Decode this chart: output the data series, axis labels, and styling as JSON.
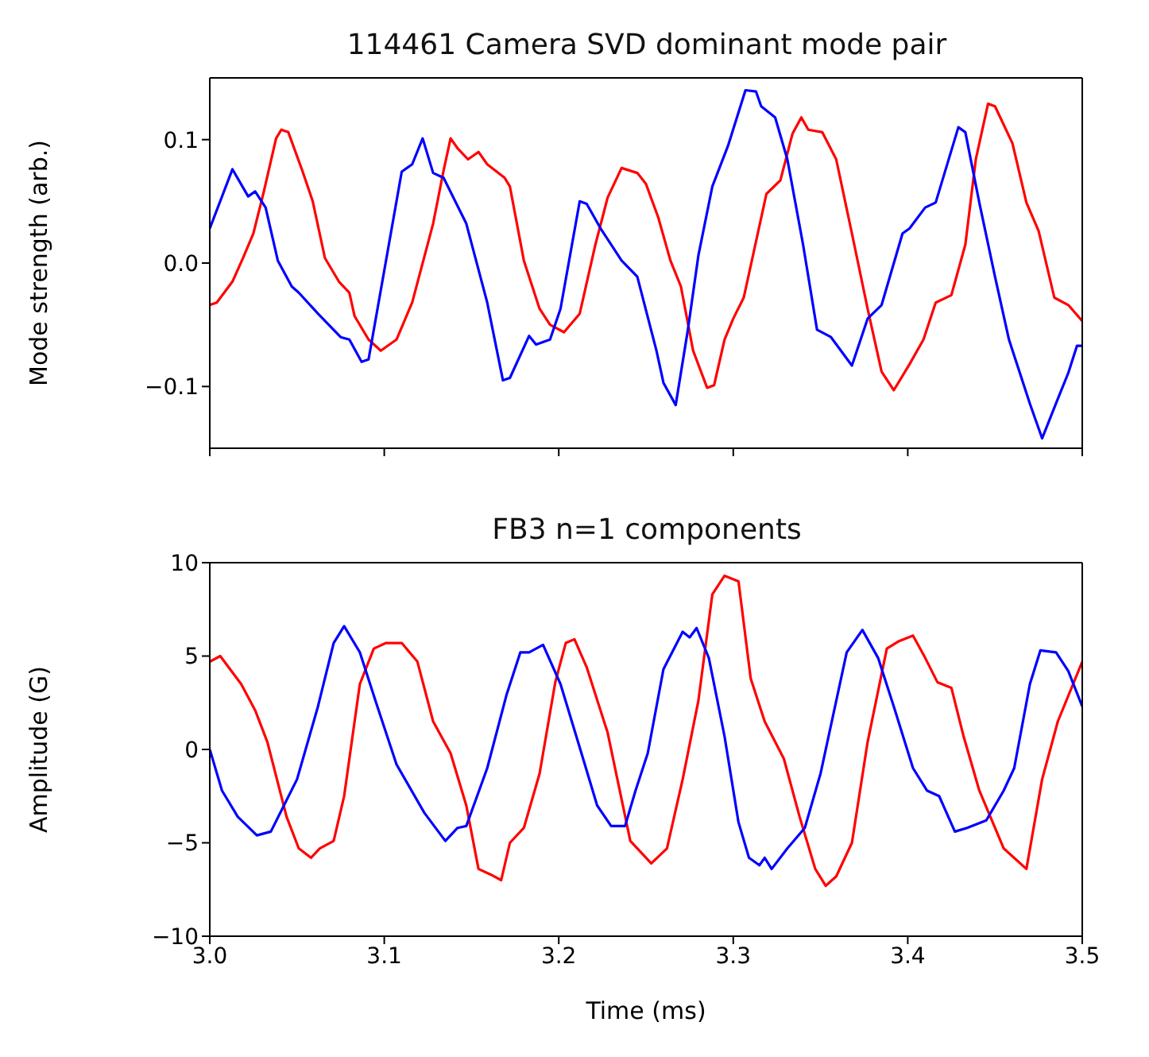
{
  "chart_data": [
    {
      "type": "line",
      "title": "114461 Camera SVD dominant mode pair",
      "ylabel": "Mode strength (arb.)",
      "xlim": [
        3.0,
        3.5
      ],
      "xticks": [
        {
          "value": 3.0,
          "label": null
        },
        {
          "value": 3.1,
          "label": null
        },
        {
          "value": 3.2,
          "label": null
        },
        {
          "value": 3.3,
          "label": null
        },
        {
          "value": 3.4,
          "label": null
        },
        {
          "value": 3.5,
          "label": null
        }
      ],
      "ylim": [
        -0.15,
        0.15
      ],
      "yticks": [
        {
          "value": -0.1,
          "label": "−0.1"
        },
        {
          "value": 0,
          "label": "0.0"
        },
        0.1
      ],
      "tick_labels": "y",
      "series": [
        {
          "color": "#ff0000",
          "x": [
            3.0,
            3.004,
            3.013,
            3.019,
            3.025,
            3.031,
            3.038,
            3.041,
            3.045,
            3.053,
            3.059,
            3.066,
            3.074,
            3.08,
            3.083,
            3.091,
            3.098,
            3.107,
            3.116,
            3.128,
            3.134,
            3.138,
            3.142,
            3.148,
            3.154,
            3.159,
            3.169,
            3.172,
            3.18,
            3.189,
            3.195,
            3.203,
            3.212,
            3.221,
            3.228,
            3.236,
            3.245,
            3.25,
            3.257,
            3.264,
            3.27,
            3.277,
            3.285,
            3.289,
            3.295,
            3.3,
            3.306,
            3.319,
            3.327,
            3.334,
            3.339,
            3.343,
            3.351,
            3.359,
            3.368,
            3.377,
            3.385,
            3.392,
            3.401,
            3.409,
            3.416,
            3.425,
            3.433,
            3.439,
            3.446,
            3.45,
            3.46,
            3.468,
            3.475,
            3.484,
            3.492,
            3.5
          ],
          "values": [
            -0.034,
            -0.032,
            -0.015,
            0.004,
            0.024,
            0.058,
            0.101,
            0.108,
            0.106,
            0.075,
            0.05,
            0.004,
            -0.015,
            -0.024,
            -0.043,
            -0.062,
            -0.071,
            -0.062,
            -0.032,
            0.032,
            0.075,
            0.101,
            0.093,
            0.084,
            0.09,
            0.08,
            0.069,
            0.062,
            0.002,
            -0.037,
            -0.05,
            -0.056,
            -0.041,
            0.015,
            0.053,
            0.077,
            0.073,
            0.064,
            0.037,
            0.002,
            -0.019,
            -0.071,
            -0.101,
            -0.099,
            -0.062,
            -0.045,
            -0.028,
            0.056,
            0.067,
            0.105,
            0.118,
            0.108,
            0.106,
            0.084,
            0.024,
            -0.037,
            -0.088,
            -0.103,
            -0.082,
            -0.062,
            -0.032,
            -0.026,
            0.015,
            0.084,
            0.129,
            0.127,
            0.097,
            0.049,
            0.026,
            -0.028,
            -0.034,
            -0.047
          ]
        },
        {
          "color": "#0000ff",
          "x": [
            3.0,
            3.013,
            3.022,
            3.026,
            3.032,
            3.039,
            3.047,
            3.051,
            3.062,
            3.075,
            3.08,
            3.087,
            3.091,
            3.11,
            3.116,
            3.122,
            3.128,
            3.134,
            3.147,
            3.159,
            3.168,
            3.172,
            3.183,
            3.187,
            3.195,
            3.201,
            3.212,
            3.216,
            3.224,
            3.236,
            3.245,
            3.256,
            3.26,
            3.267,
            3.274,
            3.28,
            3.288,
            3.297,
            3.307,
            3.313,
            3.316,
            3.324,
            3.331,
            3.34,
            3.348,
            3.356,
            3.368,
            3.377,
            3.385,
            3.397,
            3.401,
            3.41,
            3.416,
            3.429,
            3.433,
            3.441,
            3.45,
            3.458,
            3.47,
            3.477,
            3.486,
            3.492,
            3.497,
            3.5
          ],
          "values": [
            0.028,
            0.076,
            0.054,
            0.058,
            0.045,
            0.002,
            -0.019,
            -0.024,
            -0.041,
            -0.06,
            -0.062,
            -0.08,
            -0.078,
            0.074,
            0.08,
            0.101,
            0.073,
            0.069,
            0.032,
            -0.032,
            -0.095,
            -0.093,
            -0.059,
            -0.066,
            -0.062,
            -0.037,
            0.05,
            0.048,
            0.028,
            0.002,
            -0.011,
            -0.071,
            -0.097,
            -0.115,
            -0.054,
            0.006,
            0.062,
            0.095,
            0.14,
            0.139,
            0.127,
            0.118,
            0.084,
            0.015,
            -0.054,
            -0.06,
            -0.083,
            -0.045,
            -0.034,
            0.024,
            0.028,
            0.045,
            0.049,
            0.11,
            0.106,
            0.049,
            -0.011,
            -0.062,
            -0.114,
            -0.142,
            -0.11,
            -0.089,
            -0.067,
            -0.067
          ]
        }
      ]
    },
    {
      "type": "line",
      "title": "FB3 n=1 components",
      "xlabel": "Time (ms)",
      "ylabel": "Amplitude (G)",
      "xlim": [
        3.0,
        3.5
      ],
      "xticks": [
        {
          "value": 3.0,
          "label": "3.0"
        },
        3.1,
        3.2,
        3.3,
        3.4,
        {
          "value": 3.5,
          "label": "3.5"
        }
      ],
      "ylim": [
        -10,
        10
      ],
      "yticks": [
        {
          "value": -10,
          "label": "−10"
        },
        {
          "value": -5,
          "label": "−5"
        },
        0,
        5,
        10
      ],
      "series": [
        {
          "color": "#ff0000",
          "x": [
            3.0,
            3.006,
            3.018,
            3.026,
            3.033,
            3.044,
            3.051,
            3.058,
            3.063,
            3.071,
            3.077,
            3.086,
            3.094,
            3.101,
            3.11,
            3.119,
            3.128,
            3.138,
            3.147,
            3.154,
            3.161,
            3.167,
            3.172,
            3.18,
            3.189,
            3.198,
            3.204,
            3.209,
            3.216,
            3.228,
            3.241,
            3.253,
            3.262,
            3.271,
            3.28,
            3.288,
            3.295,
            3.303,
            3.31,
            3.318,
            3.329,
            3.338,
            3.347,
            3.353,
            3.359,
            3.368,
            3.377,
            3.388,
            3.395,
            3.403,
            3.41,
            3.417,
            3.425,
            3.432,
            3.441,
            3.455,
            3.468,
            3.477,
            3.486,
            3.5
          ],
          "values": [
            4.7,
            5,
            3.5,
            2.1,
            0.4,
            -3.6,
            -5.3,
            -5.8,
            -5.3,
            -4.9,
            -2.5,
            3.5,
            5.4,
            5.7,
            5.7,
            4.7,
            1.5,
            -0.2,
            -3,
            -6.4,
            -6.7,
            -7,
            -5,
            -4.2,
            -1.3,
            3.6,
            5.7,
            5.9,
            4.4,
            0.9,
            -4.9,
            -6.1,
            -5.3,
            -1.6,
            2.6,
            8.3,
            9.3,
            9,
            3.8,
            1.5,
            -0.5,
            -3.6,
            -6.4,
            -7.3,
            -6.8,
            -5,
            0.4,
            5.4,
            5.8,
            6.1,
            4.9,
            3.6,
            3.3,
            0.7,
            -2.2,
            -5.3,
            -6.4,
            -1.6,
            1.5,
            4.7
          ]
        },
        {
          "color": "#0000ff",
          "x": [
            3.0,
            3.007,
            3.016,
            3.027,
            3.035,
            3.05,
            3.062,
            3.071,
            3.077,
            3.086,
            3.095,
            3.107,
            3.123,
            3.135,
            3.142,
            3.147,
            3.159,
            3.17,
            3.178,
            3.183,
            3.191,
            3.201,
            3.213,
            3.222,
            3.23,
            3.238,
            3.244,
            3.251,
            3.26,
            3.271,
            3.275,
            3.279,
            3.286,
            3.295,
            3.303,
            3.309,
            3.315,
            3.318,
            3.322,
            3.331,
            3.341,
            3.35,
            3.365,
            3.374,
            3.383,
            3.392,
            3.403,
            3.411,
            3.418,
            3.427,
            3.434,
            3.445,
            3.455,
            3.461,
            3.47,
            3.476,
            3.485,
            3.492,
            3.5
          ],
          "values": [
            0,
            -2.2,
            -3.6,
            -4.6,
            -4.4,
            -1.6,
            2.3,
            5.7,
            6.6,
            5.2,
            2.6,
            -0.8,
            -3.4,
            -4.9,
            -4.2,
            -4.1,
            -1,
            2.9,
            5.2,
            5.2,
            5.6,
            3.5,
            -0.2,
            -3,
            -4.1,
            -4.1,
            -2.2,
            -0.2,
            4.3,
            6.3,
            6,
            6.5,
            4.9,
            0.7,
            -3.9,
            -5.8,
            -6.2,
            -5.8,
            -6.4,
            -5.3,
            -4.2,
            -1.3,
            5.2,
            6.4,
            4.9,
            2.3,
            -1,
            -2.2,
            -2.5,
            -4.4,
            -4.2,
            -3.8,
            -2.2,
            -1,
            3.5,
            5.3,
            5.2,
            4.2,
            2.3
          ]
        }
      ]
    }
  ]
}
